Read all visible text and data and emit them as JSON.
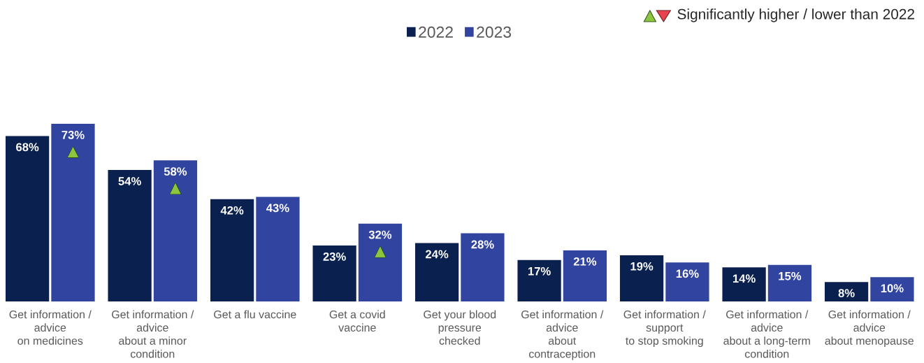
{
  "chart_data": {
    "type": "bar",
    "categories": [
      "Get information /\nadvice\non medicines",
      "Get information /\nadvice\nabout a minor\ncondition",
      "Get a flu vaccine",
      "Get a covid\nvaccine",
      "Get your blood\npressure\nchecked",
      "Get information /\nadvice\nabout\ncontraception",
      "Get information /\nsupport\nto stop smoking",
      "Get information /\nadvice\nabout a long-term\ncondition",
      "Get information /\nadvice\nabout menopause"
    ],
    "series": [
      {
        "name": "2022",
        "color": "#0a2150",
        "values": [
          68,
          54,
          42,
          23,
          24,
          17,
          19,
          14,
          8
        ],
        "value_labels": [
          "68%",
          "54%",
          "42%",
          "23%",
          "24%",
          "17%",
          "19%",
          "14%",
          "8%"
        ]
      },
      {
        "name": "2023",
        "color": "#3044a0",
        "values": [
          73,
          58,
          43,
          32,
          28,
          21,
          16,
          15,
          10
        ],
        "value_labels": [
          "73%",
          "58%",
          "43%",
          "32%",
          "28%",
          "21%",
          "16%",
          "15%",
          "10%"
        ]
      }
    ],
    "legend": "top",
    "tick_labels": "x",
    "annotations": [
      "Significantly higher / lower than 2022",
      {
        "text": "▲",
        "x": "Get information /\nadvice\non medicines",
        "y": 73
      },
      {
        "text": "▲",
        "x": "Get information /\nadvice\nabout a minor\ncondition",
        "y": 58
      },
      {
        "text": "▲",
        "x": "Get a covid\nvaccine",
        "y": 32
      }
    ]
  }
}
